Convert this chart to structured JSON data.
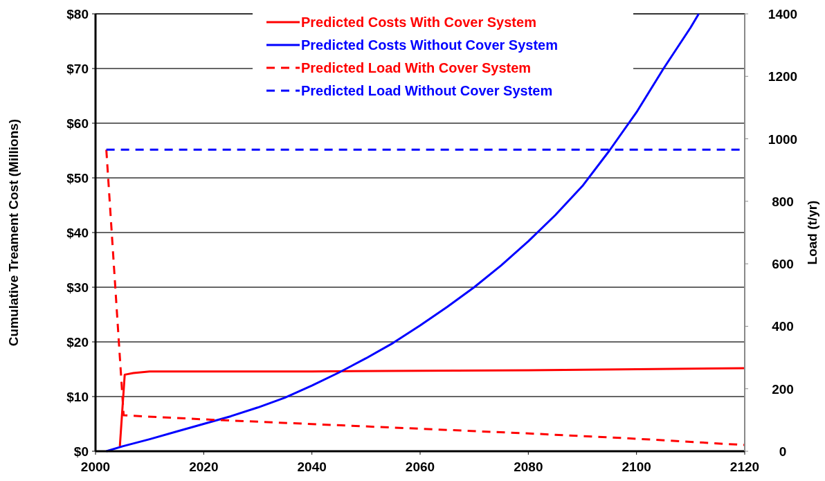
{
  "chart_data": {
    "type": "line",
    "xlabel": null,
    "ylabel": "Cumulative Treament Cost (Millions)",
    "y2label": "Load (t/yr)",
    "xlim": [
      2000,
      2120
    ],
    "xticks": [
      2000,
      2020,
      2040,
      2060,
      2080,
      2100,
      2120
    ],
    "ylim": [
      0,
      80
    ],
    "yticks": [
      {
        "value": 0,
        "label": "$0"
      },
      {
        "value": 10,
        "label": "$10"
      },
      {
        "value": 20,
        "label": "$20"
      },
      {
        "value": 30,
        "label": "$30"
      },
      {
        "value": 40,
        "label": "$40"
      },
      {
        "value": 50,
        "label": "$50"
      },
      {
        "value": 60,
        "label": "$60"
      },
      {
        "value": 70,
        "label": "$70"
      },
      {
        "value": 80,
        "label": "$80"
      }
    ],
    "y2lim": [
      0,
      1400
    ],
    "y2ticks": [
      0,
      200,
      400,
      600,
      800,
      1000,
      1200,
      1400
    ],
    "grid": "y",
    "legend": "top",
    "series": [
      {
        "name": "Predicted Costs With Cover System",
        "color": "#ff0000",
        "line_style": "solid",
        "x": [
          2004.5,
          2005.4,
          2007,
          2010,
          2020,
          2040,
          2060,
          2080,
          2100,
          2120
        ],
        "values": [
          0.9,
          14.0,
          14.3,
          14.6,
          14.6,
          14.6,
          14.7,
          14.8,
          15.0,
          15.2
        ]
      },
      {
        "name": "Predicted Costs Without Cover System",
        "color": "#0000ff",
        "line_style": "solid",
        "x": [
          2002,
          2005,
          2010,
          2015,
          2020,
          2025,
          2030,
          2035,
          2040,
          2045,
          2050,
          2055,
          2060,
          2065,
          2070,
          2075,
          2080,
          2085,
          2090,
          2095,
          2100,
          2105,
          2110,
          2111.5
        ],
        "values": [
          0,
          0.9,
          2.2,
          3.6,
          5.0,
          6.4,
          8.0,
          9.8,
          12,
          14.4,
          17,
          19.8,
          23,
          26.4,
          30,
          34,
          38.4,
          43.2,
          48.5,
          55,
          62,
          70,
          77.5,
          80
        ]
      },
      {
        "name": "Predicted Load With Cover System",
        "color": "#ff0000",
        "line_style": "dashed",
        "axis": "y2",
        "x": [
          2002,
          2005.2,
          2020,
          2040,
          2060,
          2080,
          2100,
          2120
        ],
        "values": [
          965,
          115,
          102,
          87,
          72,
          57,
          40,
          20
        ]
      },
      {
        "name": "Predicted Load Without Cover System",
        "color": "#0000ff",
        "line_style": "dashed",
        "axis": "y2",
        "x": [
          2002,
          2120
        ],
        "values": [
          965,
          965
        ]
      }
    ]
  }
}
